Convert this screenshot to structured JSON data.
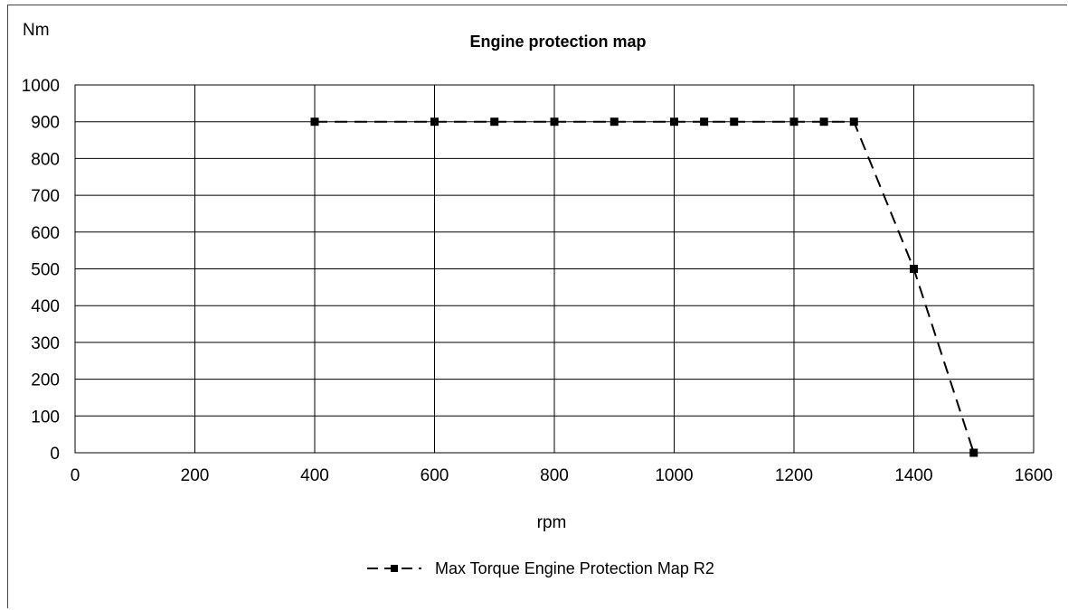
{
  "chart_data": {
    "type": "line",
    "title": "Engine protection map",
    "xlabel": "rpm",
    "ylabel": "Nm",
    "xlim": [
      0,
      1600
    ],
    "ylim": [
      0,
      1000
    ],
    "xticks": [
      0,
      200,
      400,
      600,
      800,
      1000,
      1200,
      1400,
      1600
    ],
    "yticks": [
      0,
      100,
      200,
      300,
      400,
      500,
      600,
      700,
      800,
      900,
      1000
    ],
    "grid": true,
    "legend_position": "bottom",
    "series": [
      {
        "name": "Max Torque Engine Protection Map R2",
        "color": "#000000",
        "line_style": "dashed",
        "marker": "square",
        "x": [
          400,
          600,
          700,
          800,
          900,
          1000,
          1050,
          1100,
          1200,
          1250,
          1300,
          1400,
          1500
        ],
        "y": [
          900,
          900,
          900,
          900,
          900,
          900,
          900,
          900,
          900,
          900,
          900,
          500,
          0
        ]
      }
    ]
  }
}
